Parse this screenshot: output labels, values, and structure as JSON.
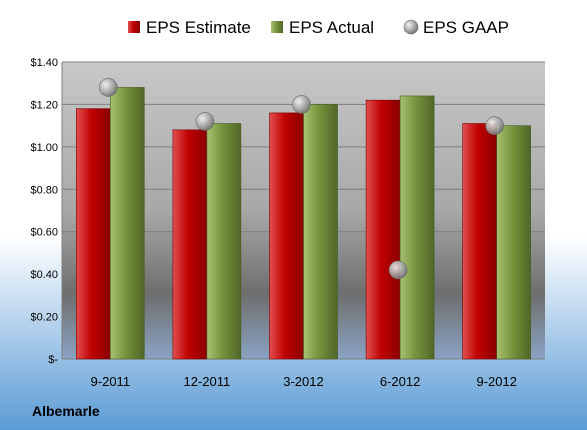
{
  "chart_data": {
    "type": "bar",
    "categories": [
      "9-2011",
      "12-2011",
      "3-2012",
      "6-2012",
      "9-2012"
    ],
    "series": [
      {
        "name": "EPS Estimate",
        "kind": "bar",
        "color": "#c00000",
        "values": [
          1.18,
          1.08,
          1.16,
          1.22,
          1.11
        ]
      },
      {
        "name": "EPS Actual",
        "kind": "bar",
        "color": "#77933c",
        "values": [
          1.28,
          1.11,
          1.2,
          1.24,
          1.1
        ]
      },
      {
        "name": "EPS GAAP",
        "kind": "marker",
        "color": "#a6a6a6",
        "values": [
          1.28,
          1.12,
          1.2,
          0.42,
          1.1
        ]
      }
    ],
    "ylim": [
      0,
      1.4
    ],
    "yticks": [
      {
        "value": 0,
        "label": "$-"
      },
      {
        "value": 0.2,
        "label": "$0.20"
      },
      {
        "value": 0.4,
        "label": "$0.40"
      },
      {
        "value": 0.6,
        "label": "$0.60"
      },
      {
        "value": 0.8,
        "label": "$0.80"
      },
      {
        "value": 1.0,
        "label": "$1.00"
      },
      {
        "value": 1.2,
        "label": "$1.20"
      },
      {
        "value": 1.4,
        "label": "$1.40"
      }
    ],
    "grid": true,
    "legend": "top",
    "company": "Albemarle"
  }
}
